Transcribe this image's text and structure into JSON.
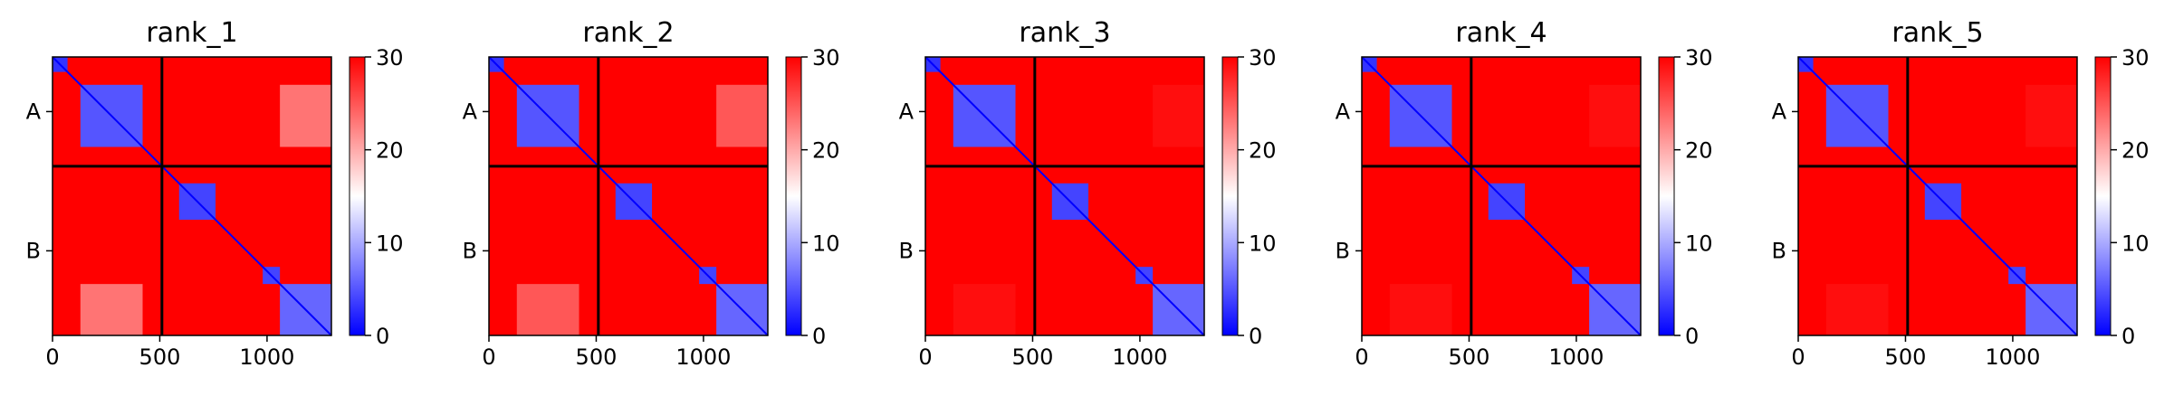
{
  "chart_data": {
    "type": "heatmap",
    "colormap": {
      "name": "bwr",
      "low": "#0000ff",
      "mid": "#ffffff",
      "high": "#ff0000"
    },
    "value_range": [
      0,
      30
    ],
    "colorbar_ticks": [
      "0",
      "10",
      "20",
      "30"
    ],
    "x_ticks": [
      0,
      500,
      1000
    ],
    "x_tick_labels": [
      "0",
      "500",
      "1000"
    ],
    "x_range": [
      0,
      1300
    ],
    "chain_boundary": 510,
    "y_tick_labels": [
      "A",
      "B"
    ],
    "y_tick_positions": [
      255,
      905
    ],
    "diagonal_blocks": [
      {
        "start": 0,
        "end": 70,
        "value": 3
      },
      {
        "start": 130,
        "end": 420,
        "value": 5
      },
      {
        "start": 590,
        "end": 760,
        "value": 4
      },
      {
        "start": 980,
        "end": 1060,
        "value": 4
      },
      {
        "start": 1060,
        "end": 1300,
        "value": 6
      }
    ],
    "panels": [
      {
        "title": "rank_1",
        "inter_region_value": 22
      },
      {
        "title": "rank_2",
        "inter_region_value": 24
      },
      {
        "title": "rank_3",
        "inter_region_value": 29
      },
      {
        "title": "rank_4",
        "inter_region_value": 29
      },
      {
        "title": "rank_5",
        "inter_region_value": 29
      }
    ]
  }
}
